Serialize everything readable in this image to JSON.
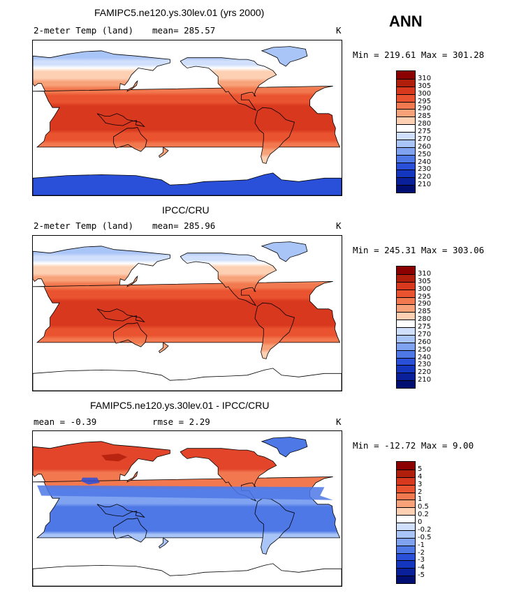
{
  "season": "ANN",
  "panels": [
    {
      "title": "FAMIPC5.ne120.ys.30lev.01 (yrs 2000)",
      "left_label": "2-meter Temp (land)",
      "mid_label": "mean= 285.57",
      "unit": "K",
      "minmax": "Min = 219.61 Max = 301.28",
      "fill_mode": "model",
      "colorbar_labels": [
        "310",
        "305",
        "300",
        "295",
        "290",
        "285",
        "280",
        "275",
        "270",
        "260",
        "250",
        "240",
        "230",
        "220",
        "210"
      ],
      "colors": [
        "#8B0000",
        "#B01E0C",
        "#D8381E",
        "#E9532F",
        "#F2794F",
        "#F8A27A",
        "#FDD0B4",
        "#FFFFFF",
        "#D0DFFB",
        "#A9C4F7",
        "#7FA3F1",
        "#4E78E6",
        "#2A4FD8",
        "#1435BE",
        "#0A1F9A",
        "#000E72"
      ]
    },
    {
      "title": "IPCC/CRU",
      "left_label": "2-meter Temp (land)",
      "mid_label": "mean= 285.96",
      "unit": "K",
      "minmax": "Min = 245.31 Max = 303.06",
      "fill_mode": "obs",
      "colorbar_labels": [
        "310",
        "305",
        "300",
        "295",
        "290",
        "285",
        "280",
        "275",
        "270",
        "260",
        "250",
        "240",
        "230",
        "220",
        "210"
      ],
      "colors": [
        "#8B0000",
        "#B01E0C",
        "#D8381E",
        "#E9532F",
        "#F2794F",
        "#F8A27A",
        "#FDD0B4",
        "#FFFFFF",
        "#D0DFFB",
        "#A9C4F7",
        "#7FA3F1",
        "#4E78E6",
        "#2A4FD8",
        "#1435BE",
        "#0A1F9A",
        "#000E72"
      ]
    },
    {
      "title": "FAMIPC5.ne120.ys.30lev.01 - IPCC/CRU",
      "left_label": "mean =   -0.39",
      "mid_label": "rmse =    2.29",
      "unit": "K",
      "minmax": "Min = -12.72 Max =   9.00",
      "fill_mode": "diff",
      "colorbar_labels": [
        "5",
        "4",
        "3",
        "2",
        "1",
        "0.5",
        "0.2",
        "0",
        "-0.2",
        "-0.5",
        "-1",
        "-2",
        "-3",
        "-4",
        "-5"
      ],
      "colors": [
        "#8B0000",
        "#B01E0C",
        "#D8381E",
        "#E9532F",
        "#F2794F",
        "#F8A27A",
        "#FDD0B4",
        "#FFFFFF",
        "#D0DFFB",
        "#A9C4F7",
        "#7FA3F1",
        "#4E78E6",
        "#2A4FD8",
        "#1435BE",
        "#0A1F9A",
        "#000E72"
      ]
    }
  ]
}
